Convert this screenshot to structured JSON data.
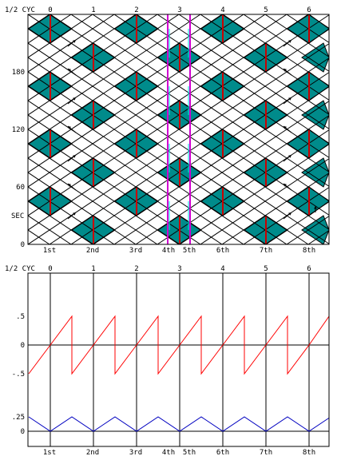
{
  "top_panel": {
    "cycle_label": "1/2 CYC",
    "half_cycles": [
      "0",
      "1",
      "2",
      "3",
      "4",
      "5",
      "6"
    ],
    "y_axis_ticks": [
      "0",
      "60",
      "120",
      "180"
    ],
    "y_axis_unit": "SEC",
    "x_positions": [
      "1st",
      "2nd",
      "3rd",
      "4th",
      "5th",
      "6th",
      "7th",
      "8th"
    ]
  },
  "bottom_panel": {
    "cycle_label": "1/2 CYC",
    "half_cycles": [
      "0",
      "1",
      "2",
      "3",
      "4",
      "5",
      "6"
    ],
    "upper_y_ticks": [
      ".5",
      "0",
      "-.5"
    ],
    "lower_y_ticks": [
      ".25",
      "0"
    ],
    "x_positions": [
      "1st",
      "2nd",
      "3rd",
      "4th",
      "5th",
      "6th",
      "7th",
      "8th"
    ]
  },
  "chart_data": {
    "type": "line",
    "x": [
      -0.5,
      0,
      0.5,
      0.5,
      1,
      1.5,
      1.5,
      2,
      2.5,
      2.5,
      3,
      3.5,
      3.5,
      4,
      4.5,
      4.5,
      5,
      5.5,
      5.5,
      6,
      6.5
    ],
    "series": [
      {
        "values": [
          -0.5,
          0,
          0.5,
          -0.5,
          0,
          0.5,
          -0.5,
          0,
          0.5,
          -0.5,
          0,
          0.5,
          -0.5,
          0,
          0.5,
          -0.5,
          0,
          0.5,
          -0.5,
          0,
          0.5
        ]
      },
      {
        "values": [
          0.25,
          0,
          0.25,
          0.25,
          0,
          0.25,
          0.25,
          0,
          0.25,
          0.25,
          0,
          0.25,
          0.25,
          0,
          0.25,
          0.25,
          0,
          0.25,
          0.25,
          0,
          0.25
        ]
      }
    ],
    "ylim_upper": [
      -0.5,
      0.5
    ],
    "ylim_lower": [
      0,
      0.25
    ]
  },
  "colors": {
    "diamond_fill": "#008b8b",
    "red_bar": "#cc0000",
    "magenta_line": "#d000d0",
    "cyan_line": "#00e0e0",
    "sawtooth": "#ff0000",
    "triangle_wave": "#0000c0",
    "grid": "#000000"
  }
}
